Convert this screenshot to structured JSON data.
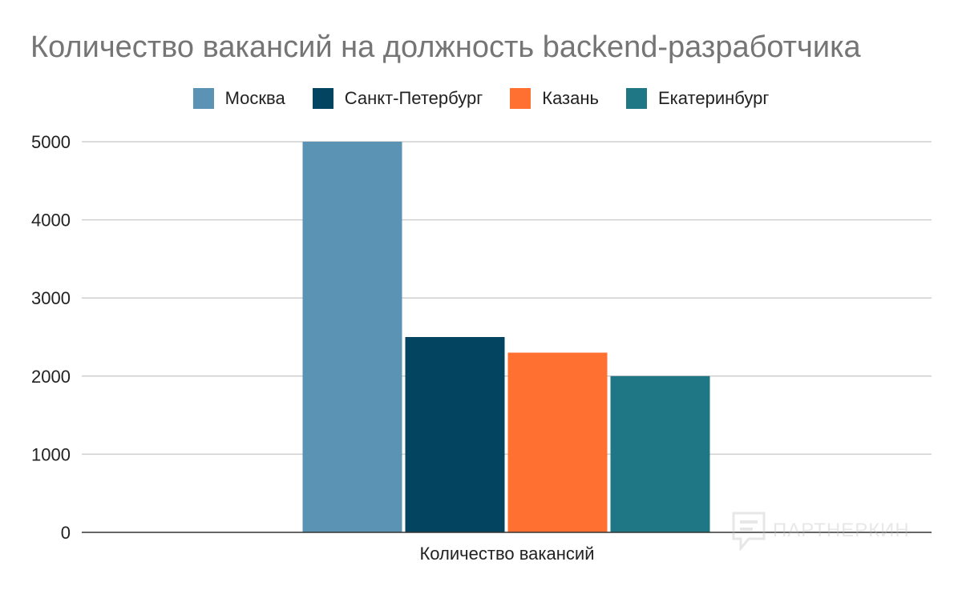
{
  "chart_data": {
    "type": "bar",
    "title": "Количество вакансий на должность backend-разработчика",
    "categories": [
      "Количество вакансий"
    ],
    "series": [
      {
        "name": "Москва",
        "values": [
          5000
        ],
        "color": "#5a93b3"
      },
      {
        "name": "Санкт-Петербург",
        "values": [
          2500
        ],
        "color": "#034561"
      },
      {
        "name": "Казань",
        "values": [
          2300
        ],
        "color": "#ff7031"
      },
      {
        "name": "Екатеринбург",
        "values": [
          2000
        ],
        "color": "#1f7785"
      }
    ],
    "ylim": [
      0,
      5000
    ],
    "yticks": [
      0,
      1000,
      2000,
      3000,
      4000,
      5000
    ],
    "grid": true,
    "legend_position": "top"
  },
  "watermark": {
    "text": "ПАРТНЕРКИН",
    "icon": "chat-bubble-logo-icon"
  }
}
